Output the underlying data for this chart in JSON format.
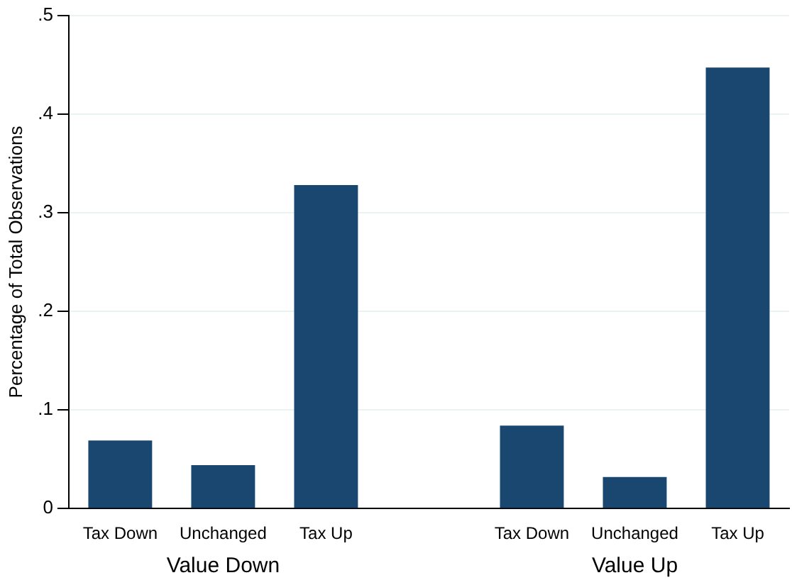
{
  "chart_data": {
    "type": "bar",
    "ylabel": "Percentage of Total Observations",
    "categories": [
      "Tax Down",
      "Unchanged",
      "Tax Up",
      null,
      "Tax Down",
      "Unchanged",
      "Tax Up"
    ],
    "values": [
      0.069,
      0.044,
      0.328,
      null,
      0.084,
      0.032,
      0.447
    ],
    "color": "#1a476f",
    "ylim": [
      0,
      0.5
    ],
    "yticks": [
      0,
      {
        "value": 0.1,
        "label": ".1"
      },
      {
        "value": 0.2,
        "label": ".2"
      },
      {
        "value": 0.3,
        "label": ".3"
      },
      {
        "value": 0.4,
        "label": ".4"
      },
      {
        "value": 0.5,
        "label": ".5"
      }
    ],
    "grid": "y",
    "annotations": [
      "Value Down",
      "Value Up"
    ]
  }
}
